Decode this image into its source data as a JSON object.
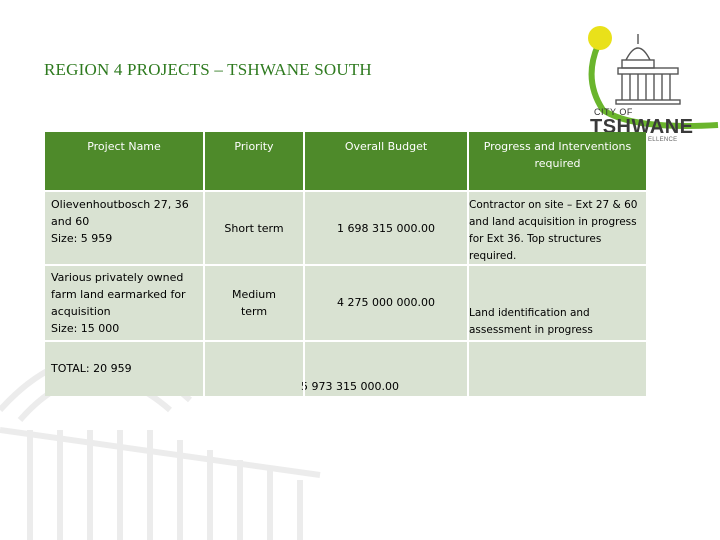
{
  "slide": {
    "title": "REGION 4 PROJECTS – TSHWANE SOUTH"
  },
  "logo": {
    "city_of": "CITY OF",
    "name": "TSHWANE",
    "tagline": "ELLENCE"
  },
  "colors": {
    "header_green": "#4e8a2a",
    "body_fill": "#d9e2d2",
    "title_green": "#2e7a1f",
    "logo_yellow": "#e9e11a",
    "logo_green": "#6ab52d"
  },
  "table": {
    "headers": [
      "Project Name",
      "Priority",
      "Overall Budget",
      "Progress and Interventions required"
    ],
    "rows": [
      {
        "project": "Olievenhoutbosch 27, 36 and 60\nSize: 5 959",
        "priority": "Short term",
        "budget": "1 698 315 000.00",
        "progress": "Contractor on site – Ext 27 & 60 and land acquisition in progress for Ext 36. Top structures required."
      },
      {
        "project": "Various privately owned farm land earmarked for acquisition\nSize: 15 000",
        "priority": "Medium term",
        "budget": "4 275 000 000.00",
        "progress": "Land identification and assessment in progress"
      }
    ],
    "total": {
      "label": "TOTAL:  20 959",
      "budget": "5 973 315 000.00"
    }
  }
}
